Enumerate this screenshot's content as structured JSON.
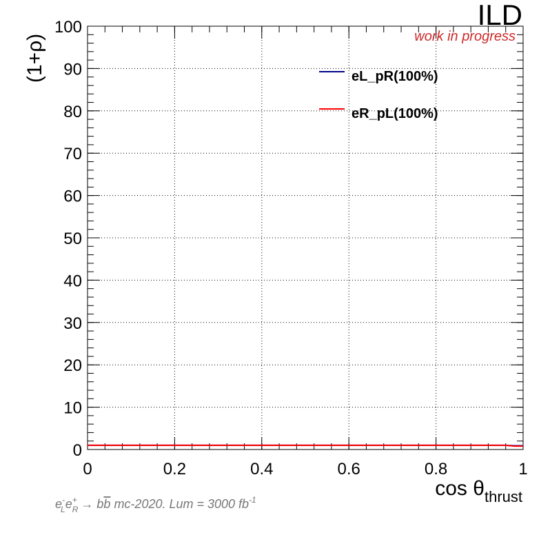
{
  "chart_data": {
    "type": "line",
    "title": "",
    "xlabel": "cos θ",
    "xlabel_sub": "thrust",
    "ylabel": "(1+ρ)",
    "xlim": [
      0,
      1
    ],
    "ylim": [
      0,
      100
    ],
    "x_ticks": [
      "0",
      "0.2",
      "0.4",
      "0.6",
      "0.8",
      "1"
    ],
    "y_ticks": [
      "0",
      "10",
      "20",
      "30",
      "40",
      "50",
      "60",
      "70",
      "80",
      "90",
      "100"
    ],
    "grid": true,
    "legend_position": "top-right",
    "series": [
      {
        "name": "eL_pR(100%)",
        "color": "#00008b",
        "x": [
          0,
          0.1,
          0.2,
          0.3,
          0.4,
          0.5,
          0.6,
          0.7,
          0.8,
          0.9,
          0.96,
          0.98,
          1.0
        ],
        "y": [
          1,
          1,
          1,
          1,
          1,
          1,
          1,
          1,
          1,
          1,
          1,
          0.9,
          0.9
        ]
      },
      {
        "name": "eR_pL(100%)",
        "color": "#ff0000",
        "x": [
          0,
          0.1,
          0.2,
          0.3,
          0.4,
          0.5,
          0.6,
          0.7,
          0.8,
          0.9,
          0.96,
          0.98,
          1.0
        ],
        "y": [
          1,
          1,
          1,
          1,
          1,
          1,
          1,
          1,
          1,
          1,
          1,
          0.8,
          0.8
        ]
      }
    ],
    "annotations": {
      "experiment": "ILD",
      "status": "work in progress",
      "footnote_process": "→ b",
      "footnote_rest": " mc-2020. Lum = 3000 fb"
    }
  }
}
